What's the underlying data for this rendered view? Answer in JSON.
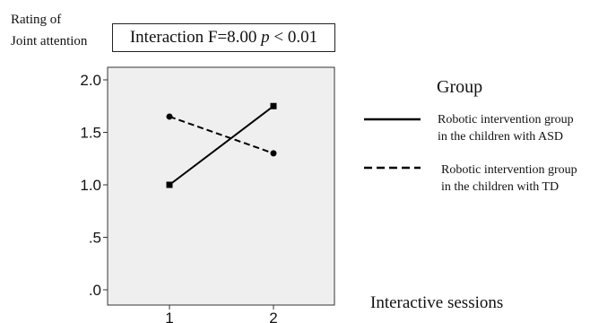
{
  "chart_data": {
    "type": "line",
    "title": "",
    "ylabel_lines": [
      "Rating of",
      "Joint attention"
    ],
    "xlabel": "Interactive sessions",
    "annotation": {
      "text": "Interaction F=8.00 ",
      "p_symbol": "p",
      "p_rest": " < 0.01"
    },
    "categories": [
      "1",
      "2"
    ],
    "y_ticks": [
      ".0",
      ".5",
      "1.0",
      "1.5",
      "2.0"
    ],
    "ylim": [
      0,
      2.0
    ],
    "legend_title": "Group",
    "legend_placement": "right",
    "plot_background": "#efefef",
    "grid": false,
    "series": [
      {
        "name": [
          "Robotic intervention group",
          "in the children with ASD"
        ],
        "values": [
          1.0,
          1.75
        ],
        "line_style": "solid",
        "marker": "square",
        "color": "#000000"
      },
      {
        "name": [
          "Robotic intervention group",
          "in the children with TD"
        ],
        "values": [
          1.65,
          1.3
        ],
        "line_style": "dashed",
        "marker": "circle",
        "color": "#000000"
      }
    ]
  }
}
